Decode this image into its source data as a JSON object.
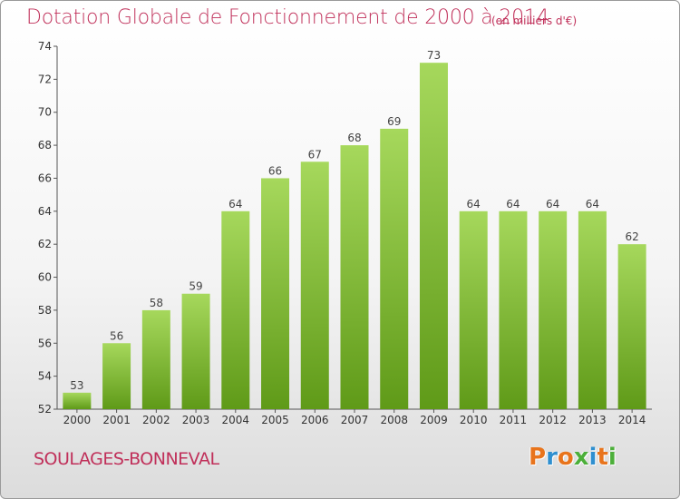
{
  "header": {
    "title": "Dotation Globale de Fonctionnement de 2000 à 2014",
    "unit": "(en milliers d'€)"
  },
  "footer": {
    "location": "SOULAGES-BONNEVAL",
    "brand": "Proxiti"
  },
  "colors": {
    "text_accent": "#c0305a",
    "bar_light": "#a6d85c",
    "bar_dark": "#5f9a18",
    "brand_letters": [
      "#e8741c",
      "#2f8fcf",
      "#e8741c",
      "#4caf3a",
      "#2f8fcf",
      "#e8741c",
      "#4caf3a"
    ]
  },
  "chart_data": {
    "type": "bar",
    "categories": [
      "2000",
      "2001",
      "2002",
      "2003",
      "2004",
      "2005",
      "2006",
      "2007",
      "2008",
      "2009",
      "2010",
      "2011",
      "2012",
      "2013",
      "2014"
    ],
    "values": [
      53,
      56,
      58,
      59,
      64,
      66,
      67,
      68,
      69,
      73,
      64,
      64,
      64,
      64,
      62
    ],
    "title": "Dotation Globale de Fonctionnement de 2000 à 2014",
    "xlabel": "",
    "ylabel": "",
    "ylim": [
      52,
      74
    ],
    "yticks": [
      52,
      54,
      56,
      58,
      60,
      62,
      64,
      66,
      68,
      70,
      72,
      74
    ],
    "grid": false,
    "data_labels": true
  }
}
